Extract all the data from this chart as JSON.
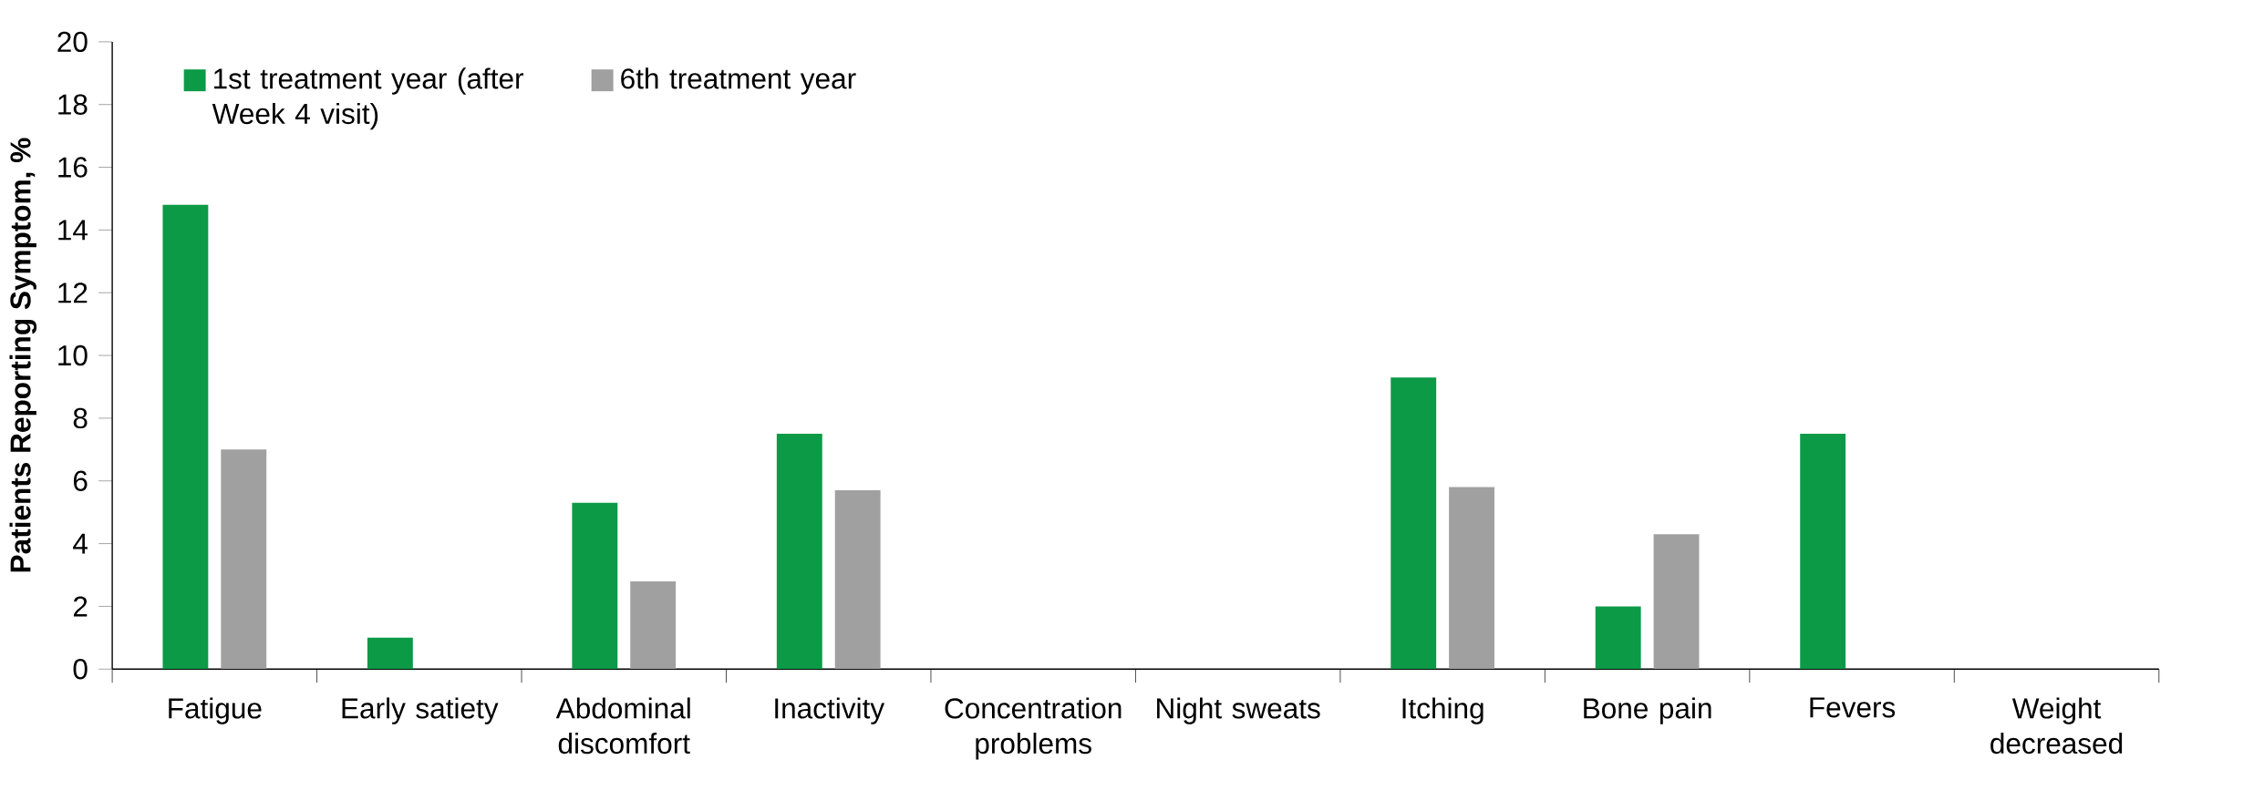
{
  "chart_data": {
    "type": "bar",
    "ylabel": "Patients Reporting Symptom, %",
    "categories": [
      "Fatigue",
      "Early satiety",
      "Abdominal discomfort",
      "Inactivity",
      "Concentration problems",
      "Night sweats",
      "Itching",
      "Bone pain",
      "Fevers",
      "Weight decreased"
    ],
    "series": [
      {
        "name": "1st treatment year (after Week 4 visit)",
        "color": "#0c9a47",
        "values": [
          14.8,
          1.0,
          5.3,
          7.5,
          0,
          0,
          9.3,
          2.0,
          7.5,
          0
        ]
      },
      {
        "name": "6th treatment year",
        "color": "#a0a0a0",
        "values": [
          7.0,
          0,
          2.8,
          5.7,
          0,
          0,
          5.8,
          4.3,
          0,
          0
        ]
      }
    ],
    "ylim": [
      0,
      20
    ],
    "yticks": [
      0,
      2,
      4,
      6,
      8,
      10,
      12,
      14,
      16,
      18,
      20
    ],
    "grid": false,
    "legend": "top left"
  }
}
